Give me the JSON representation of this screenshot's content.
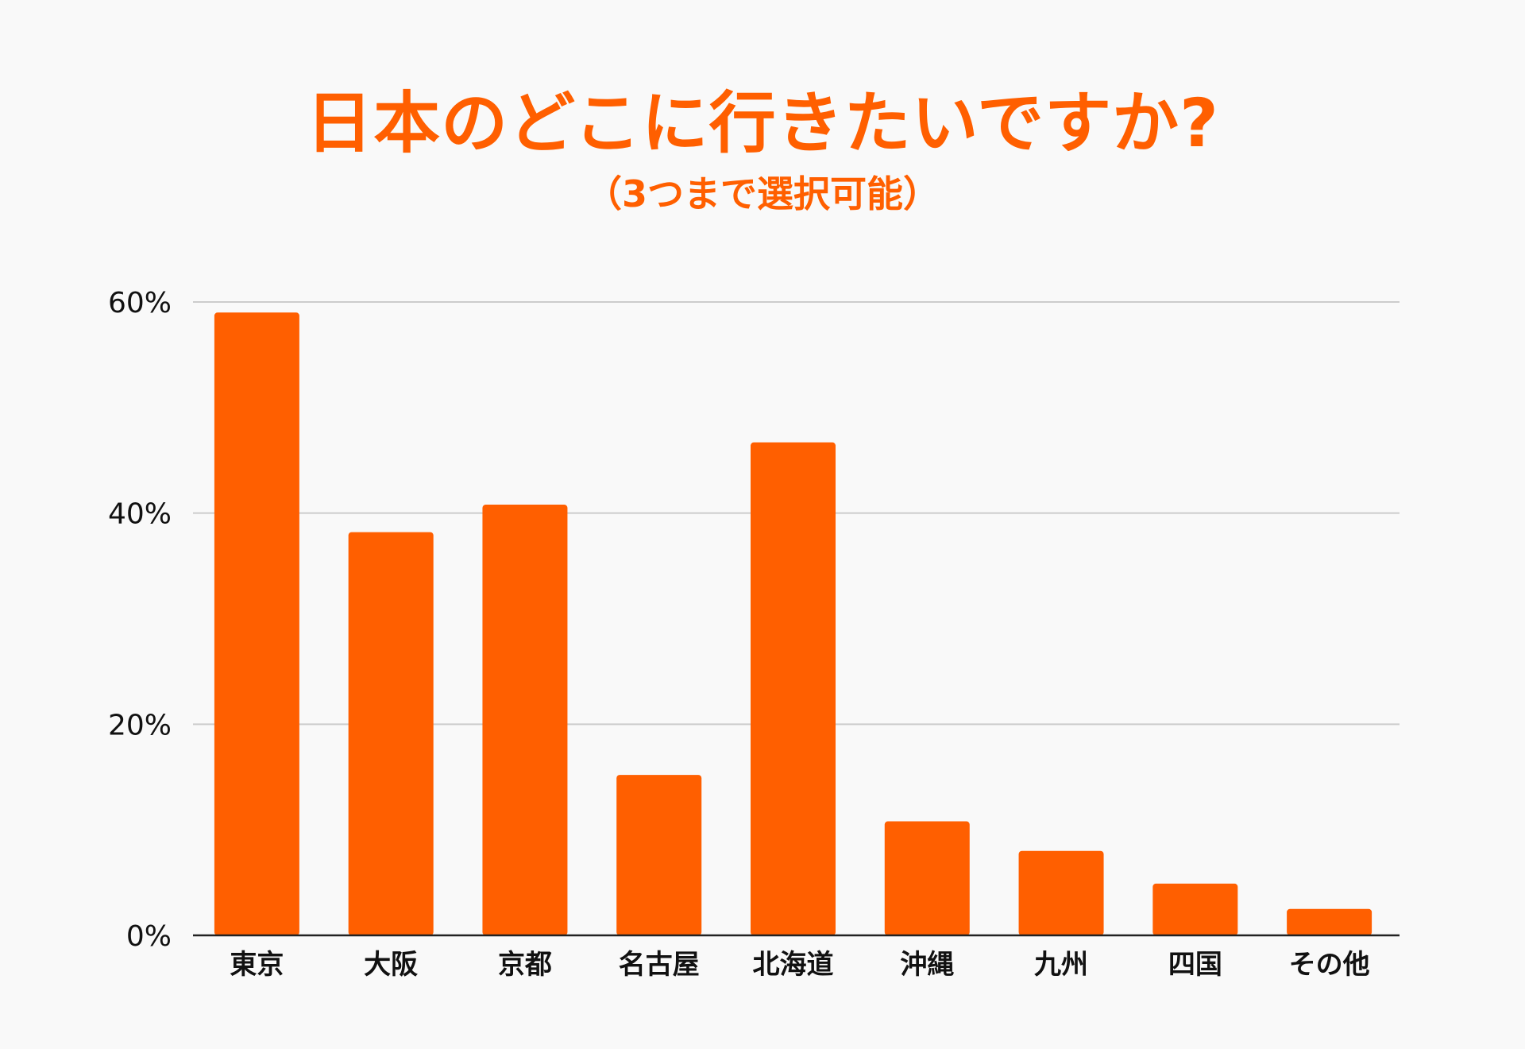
{
  "colors": {
    "accent": "#FF5F00",
    "background": "#F9F9F9",
    "grid": "#CCCCCC",
    "axis": "#222222",
    "text": "#111111"
  },
  "chart_data": {
    "type": "bar",
    "title": "日本のどこに行きたいですか?",
    "subtitle": "（3つまで選択可能）",
    "xlabel": "",
    "ylabel": "",
    "categories": [
      "東京",
      "大阪",
      "京都",
      "名古屋",
      "北海道",
      "沖縄",
      "九州",
      "四国",
      "その他"
    ],
    "values": [
      59,
      38.2,
      40.8,
      15.2,
      46.7,
      10.8,
      8,
      4.9,
      2.5
    ],
    "ylim": [
      0,
      60
    ],
    "yticks": [
      {
        "value": 0,
        "label": "0%"
      },
      {
        "value": 20,
        "label": "20%"
      },
      {
        "value": 40,
        "label": "40%"
      },
      {
        "value": 60,
        "label": "60%"
      }
    ],
    "grid": true,
    "legend": "none"
  }
}
